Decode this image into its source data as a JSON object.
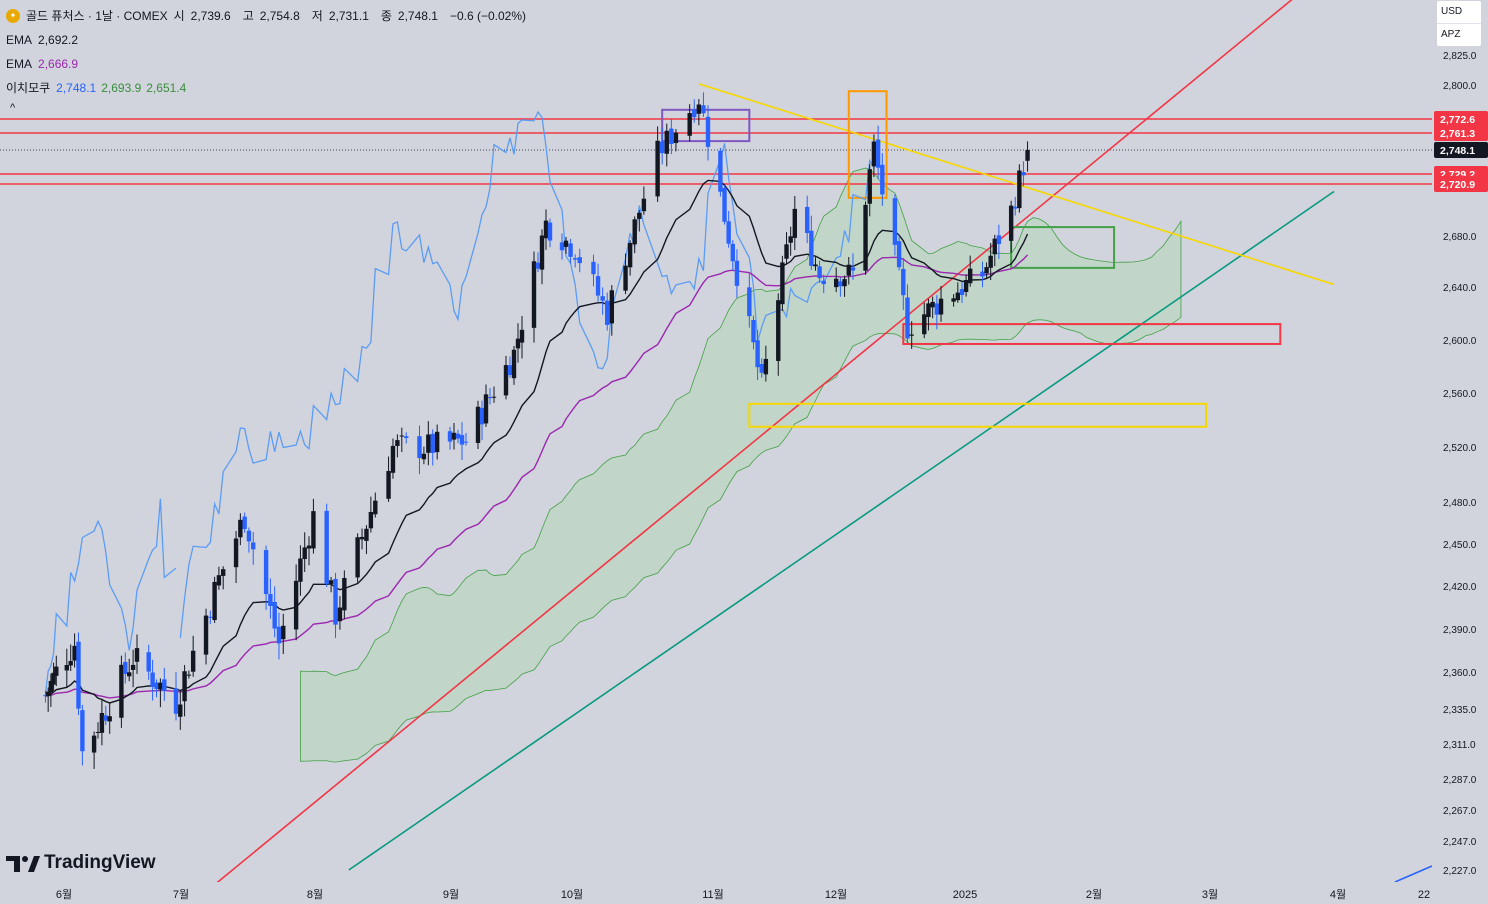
{
  "header": {
    "symbol": "골드 퓨처스 · 1날 · COMEX",
    "open_label": "시",
    "open": "2,739.6",
    "high_label": "고",
    "high": "2,754.8",
    "low_label": "저",
    "low": "2,731.1",
    "close_label": "종",
    "close": "2,748.1",
    "change": "−0.6 (−0.02%)"
  },
  "indicators": {
    "ema1_label": "EMA",
    "ema1_value": "2,692.2",
    "ema1_color": "#131722",
    "ema2_label": "EMA",
    "ema2_value": "2,666.9",
    "ema2_color": "#9c27b0",
    "ichimoku_label": "이치모쿠",
    "ichimoku_values": [
      "2,748.1",
      "2,693.9",
      "2,651.4"
    ],
    "ichimoku_colors": [
      "#2962ff",
      "#388e3c",
      "#388e3c"
    ],
    "collapse_glyph": "^"
  },
  "unit_menu": {
    "currency": "USD",
    "tag": "APZ"
  },
  "watermark": "TradingView",
  "colors": {
    "up": "#131722",
    "down": "#2962ff",
    "resistance": "#f23645",
    "trend_red": "#f23645",
    "trend_green": "#089981",
    "trend_yellow": "#f6d700",
    "lagging": "#5b9cf6",
    "cloud": "#a5d6a7"
  },
  "chart_data": {
    "type": "candlestick",
    "title": "골드 퓨처스 · 1날 · COMEX",
    "ylim": [
      2215,
      2840
    ],
    "y_ticks": [
      "2,227.0",
      "2,247.0",
      "2,267.0",
      "2,287.0",
      "2,311.0",
      "2,335.0",
      "2,360.0",
      "2,390.0",
      "2,420.0",
      "2,450.0",
      "2,480.0",
      "2,520.0",
      "2,560.0",
      "2,600.0",
      "2,640.0",
      "2,680.0",
      "2,800.0",
      "2,825.0"
    ],
    "x_ticks": [
      "6월",
      "7월",
      "8월",
      "9월",
      "10월",
      "11월",
      "12월",
      "2025",
      "2월",
      "3월",
      "4월",
      "22"
    ],
    "price_labels": [
      {
        "value": 2772.6,
        "text": "2,772.6",
        "color": "#f23645"
      },
      {
        "value": 2761.3,
        "text": "2,761.3",
        "color": "#f23645"
      },
      {
        "value": 2748.1,
        "text": "2,748.1",
        "color": "#131722"
      },
      {
        "value": 2729.2,
        "text": "2,729.2",
        "color": "#f23645"
      },
      {
        "value": 2720.9,
        "text": "2,720.9",
        "color": "#f23645"
      }
    ],
    "current_price": 2748.1,
    "resistance_lines": [
      2772.6,
      2761.3,
      2729.2,
      2720.9
    ],
    "ohlc_samples": [
      {
        "date": "2024-06",
        "close": 2330
      },
      {
        "date": "2024-07",
        "close": 2420
      },
      {
        "date": "2024-08",
        "close": 2505
      },
      {
        "date": "2024-09",
        "close": 2660
      },
      {
        "date": "2024-10-30",
        "high": 2801,
        "close": 2755
      },
      {
        "date": "2024-11-14",
        "low": 2541,
        "close": 2565
      },
      {
        "date": "2024-12-11",
        "high": 2765,
        "close": 2710
      },
      {
        "date": "2024-12-19",
        "low": 2597,
        "close": 2620
      },
      {
        "date": "2025-01-17",
        "open": 2739.6,
        "high": 2754.8,
        "low": 2731.1,
        "close": 2748.1
      }
    ],
    "series": [
      {
        "name": "EMA",
        "last": 2692.2
      },
      {
        "name": "EMA",
        "last": 2666.9
      },
      {
        "name": "이치모쿠",
        "values": [
          2748.1,
          2693.9,
          2651.4
        ]
      }
    ],
    "zones": [
      {
        "color": "purple",
        "ymin": 2755,
        "ymax": 2780
      },
      {
        "color": "orange",
        "ymin": 2710,
        "ymax": 2795
      },
      {
        "color": "green",
        "ymin": 2655,
        "ymax": 2687
      },
      {
        "color": "red",
        "ymin": 2597,
        "ymax": 2612
      },
      {
        "color": "yellow",
        "ymin": 2535,
        "ymax": 2552
      }
    ]
  }
}
